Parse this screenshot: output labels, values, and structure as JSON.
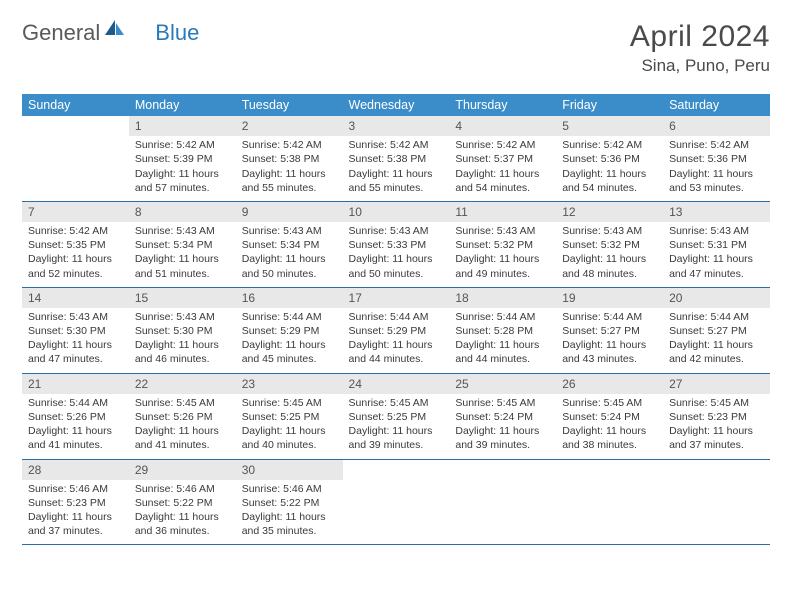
{
  "logo": {
    "part1": "General",
    "part2": "Blue"
  },
  "title": "April 2024",
  "location": "Sina, Puno, Peru",
  "colors": {
    "header_bg": "#3b8dc9",
    "header_text": "#ffffff",
    "daynum_bg": "#e8e8e8",
    "divider": "#2a6fa8",
    "text": "#3a3a3a",
    "logo_blue": "#2a7ab8"
  },
  "typography": {
    "title_fontsize": 30,
    "location_fontsize": 17,
    "dayhead_fontsize": 12.5,
    "cell_fontsize": 10.5
  },
  "days_of_week": [
    "Sunday",
    "Monday",
    "Tuesday",
    "Wednesday",
    "Thursday",
    "Friday",
    "Saturday"
  ],
  "weeks": [
    [
      null,
      {
        "n": "1",
        "sr": "5:42 AM",
        "ss": "5:39 PM",
        "dl": "11 hours and 57 minutes."
      },
      {
        "n": "2",
        "sr": "5:42 AM",
        "ss": "5:38 PM",
        "dl": "11 hours and 55 minutes."
      },
      {
        "n": "3",
        "sr": "5:42 AM",
        "ss": "5:38 PM",
        "dl": "11 hours and 55 minutes."
      },
      {
        "n": "4",
        "sr": "5:42 AM",
        "ss": "5:37 PM",
        "dl": "11 hours and 54 minutes."
      },
      {
        "n": "5",
        "sr": "5:42 AM",
        "ss": "5:36 PM",
        "dl": "11 hours and 54 minutes."
      },
      {
        "n": "6",
        "sr": "5:42 AM",
        "ss": "5:36 PM",
        "dl": "11 hours and 53 minutes."
      }
    ],
    [
      {
        "n": "7",
        "sr": "5:42 AM",
        "ss": "5:35 PM",
        "dl": "11 hours and 52 minutes."
      },
      {
        "n": "8",
        "sr": "5:43 AM",
        "ss": "5:34 PM",
        "dl": "11 hours and 51 minutes."
      },
      {
        "n": "9",
        "sr": "5:43 AM",
        "ss": "5:34 PM",
        "dl": "11 hours and 50 minutes."
      },
      {
        "n": "10",
        "sr": "5:43 AM",
        "ss": "5:33 PM",
        "dl": "11 hours and 50 minutes."
      },
      {
        "n": "11",
        "sr": "5:43 AM",
        "ss": "5:32 PM",
        "dl": "11 hours and 49 minutes."
      },
      {
        "n": "12",
        "sr": "5:43 AM",
        "ss": "5:32 PM",
        "dl": "11 hours and 48 minutes."
      },
      {
        "n": "13",
        "sr": "5:43 AM",
        "ss": "5:31 PM",
        "dl": "11 hours and 47 minutes."
      }
    ],
    [
      {
        "n": "14",
        "sr": "5:43 AM",
        "ss": "5:30 PM",
        "dl": "11 hours and 47 minutes."
      },
      {
        "n": "15",
        "sr": "5:43 AM",
        "ss": "5:30 PM",
        "dl": "11 hours and 46 minutes."
      },
      {
        "n": "16",
        "sr": "5:44 AM",
        "ss": "5:29 PM",
        "dl": "11 hours and 45 minutes."
      },
      {
        "n": "17",
        "sr": "5:44 AM",
        "ss": "5:29 PM",
        "dl": "11 hours and 44 minutes."
      },
      {
        "n": "18",
        "sr": "5:44 AM",
        "ss": "5:28 PM",
        "dl": "11 hours and 44 minutes."
      },
      {
        "n": "19",
        "sr": "5:44 AM",
        "ss": "5:27 PM",
        "dl": "11 hours and 43 minutes."
      },
      {
        "n": "20",
        "sr": "5:44 AM",
        "ss": "5:27 PM",
        "dl": "11 hours and 42 minutes."
      }
    ],
    [
      {
        "n": "21",
        "sr": "5:44 AM",
        "ss": "5:26 PM",
        "dl": "11 hours and 41 minutes."
      },
      {
        "n": "22",
        "sr": "5:45 AM",
        "ss": "5:26 PM",
        "dl": "11 hours and 41 minutes."
      },
      {
        "n": "23",
        "sr": "5:45 AM",
        "ss": "5:25 PM",
        "dl": "11 hours and 40 minutes."
      },
      {
        "n": "24",
        "sr": "5:45 AM",
        "ss": "5:25 PM",
        "dl": "11 hours and 39 minutes."
      },
      {
        "n": "25",
        "sr": "5:45 AM",
        "ss": "5:24 PM",
        "dl": "11 hours and 39 minutes."
      },
      {
        "n": "26",
        "sr": "5:45 AM",
        "ss": "5:24 PM",
        "dl": "11 hours and 38 minutes."
      },
      {
        "n": "27",
        "sr": "5:45 AM",
        "ss": "5:23 PM",
        "dl": "11 hours and 37 minutes."
      }
    ],
    [
      {
        "n": "28",
        "sr": "5:46 AM",
        "ss": "5:23 PM",
        "dl": "11 hours and 37 minutes."
      },
      {
        "n": "29",
        "sr": "5:46 AM",
        "ss": "5:22 PM",
        "dl": "11 hours and 36 minutes."
      },
      {
        "n": "30",
        "sr": "5:46 AM",
        "ss": "5:22 PM",
        "dl": "11 hours and 35 minutes."
      },
      null,
      null,
      null,
      null
    ]
  ],
  "labels": {
    "sunrise": "Sunrise:",
    "sunset": "Sunset:",
    "daylight": "Daylight:"
  }
}
